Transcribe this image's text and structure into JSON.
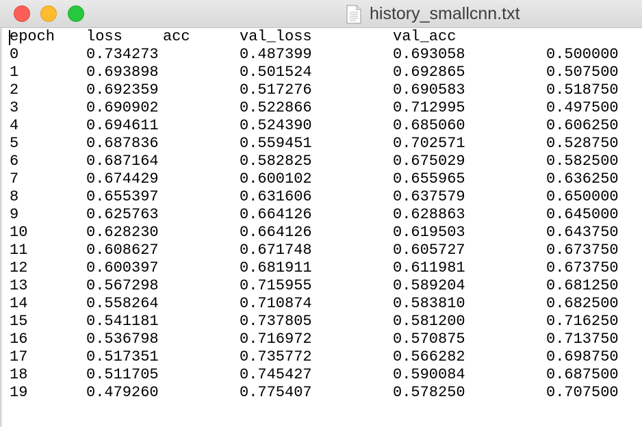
{
  "window": {
    "title": "history_smallcnn.txt"
  },
  "icons": {
    "close": "close-traffic-light",
    "minimize": "minimize-traffic-light",
    "zoom": "zoom-traffic-light",
    "document": "text-document-icon"
  },
  "colors": {
    "close": "#fc5f57",
    "minimize": "#fdbc2e",
    "zoom": "#28c840"
  },
  "file": {
    "header": [
      "epoch",
      "loss",
      "acc",
      "val_loss",
      "val_acc"
    ],
    "rows": [
      [
        "0",
        "0.734273",
        "0.487399",
        "0.693058",
        "0.500000"
      ],
      [
        "1",
        "0.693898",
        "0.501524",
        "0.692865",
        "0.507500"
      ],
      [
        "2",
        "0.692359",
        "0.517276",
        "0.690583",
        "0.518750"
      ],
      [
        "3",
        "0.690902",
        "0.522866",
        "0.712995",
        "0.497500"
      ],
      [
        "4",
        "0.694611",
        "0.524390",
        "0.685060",
        "0.606250"
      ],
      [
        "5",
        "0.687836",
        "0.559451",
        "0.702571",
        "0.528750"
      ],
      [
        "6",
        "0.687164",
        "0.582825",
        "0.675029",
        "0.582500"
      ],
      [
        "7",
        "0.674429",
        "0.600102",
        "0.655965",
        "0.636250"
      ],
      [
        "8",
        "0.655397",
        "0.631606",
        "0.637579",
        "0.650000"
      ],
      [
        "9",
        "0.625763",
        "0.664126",
        "0.628863",
        "0.645000"
      ],
      [
        "10",
        "0.628230",
        "0.664126",
        "0.619503",
        "0.643750"
      ],
      [
        "11",
        "0.608627",
        "0.671748",
        "0.605727",
        "0.673750"
      ],
      [
        "12",
        "0.600397",
        "0.681911",
        "0.611981",
        "0.673750"
      ],
      [
        "13",
        "0.567298",
        "0.715955",
        "0.589204",
        "0.681250"
      ],
      [
        "14",
        "0.558264",
        "0.710874",
        "0.583810",
        "0.682500"
      ],
      [
        "15",
        "0.541181",
        "0.737805",
        "0.581200",
        "0.716250"
      ],
      [
        "16",
        "0.536798",
        "0.716972",
        "0.570875",
        "0.713750"
      ],
      [
        "17",
        "0.517351",
        "0.735772",
        "0.566282",
        "0.698750"
      ],
      [
        "18",
        "0.511705",
        "0.745427",
        "0.590084",
        "0.687500"
      ],
      [
        "19",
        "0.479260",
        "0.775407",
        "0.578250",
        "0.707500"
      ]
    ]
  }
}
